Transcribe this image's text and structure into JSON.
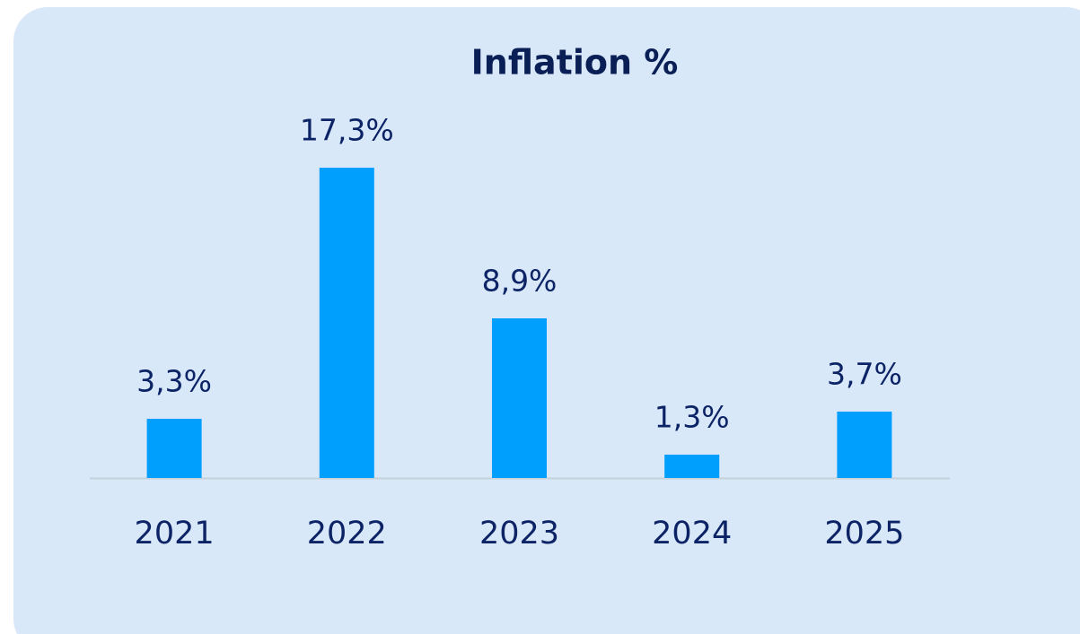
{
  "chart_data": {
    "type": "bar",
    "title": "Inflation %",
    "categories": [
      "2021",
      "2022",
      "2023",
      "2024",
      "2025"
    ],
    "values": [
      3.3,
      17.3,
      8.9,
      1.3,
      3.7
    ],
    "value_labels": [
      "3,3%",
      "17,3%",
      "8,9%",
      "1,3%",
      "3,7%"
    ],
    "color": "#009ffd"
  }
}
